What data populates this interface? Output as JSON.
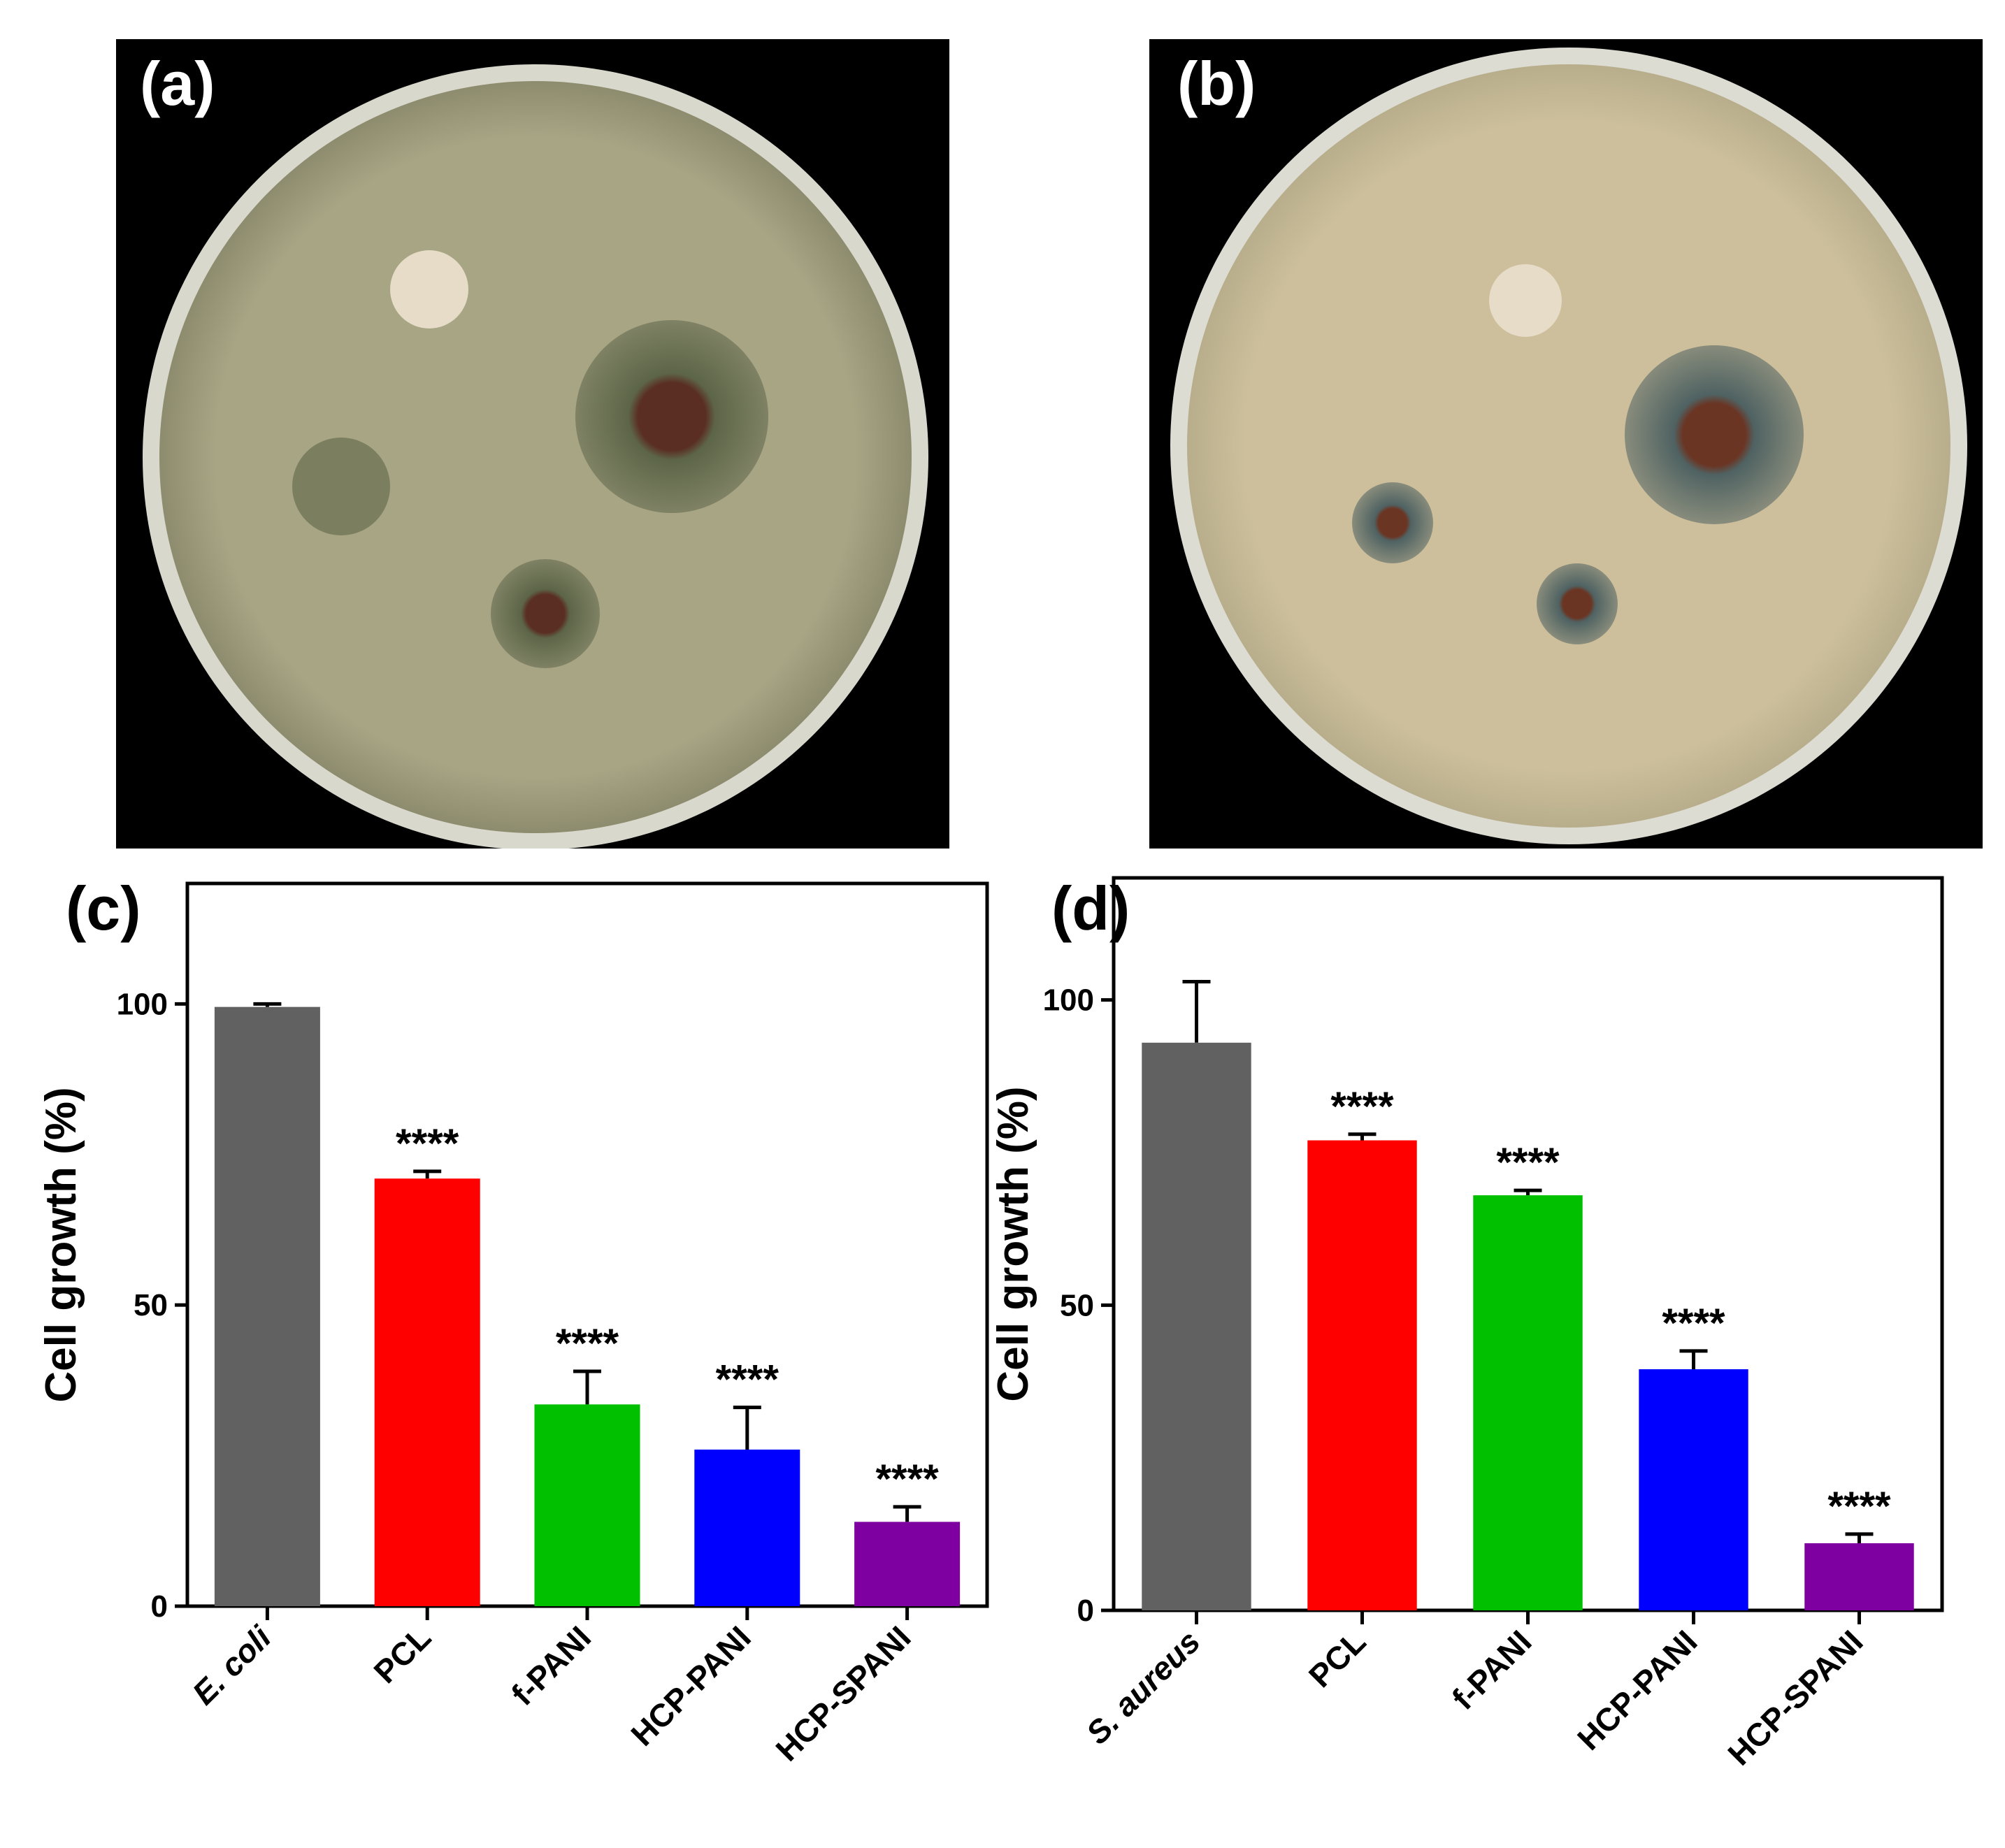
{
  "panels": {
    "a": {
      "label": "(a)"
    },
    "b": {
      "label": "(b)"
    },
    "c": {
      "label": "(c)"
    },
    "d": {
      "label": "(d)"
    }
  },
  "photo_a": {
    "colors": {
      "agar": "#a8a585",
      "agar_edge": "#8e8c6e",
      "rim": "#d8d8cc",
      "zone": "#5d6548",
      "disc": "#e6dcc8",
      "sample": "#5a2e22"
    }
  },
  "photo_b": {
    "colors": {
      "agar": "#cdbf9b",
      "agar_edge": "#b8ae8c",
      "rim": "#dcdcd2",
      "zone": "#4f6262",
      "disc": "#e6dcc8",
      "sample": "#6b3524"
    }
  },
  "chart_data": [
    {
      "type": "bar",
      "panel": "(c)",
      "categories": [
        "E. coli",
        "PCL",
        "f-PANI",
        "HCP-PANI",
        "HCP-SPANI"
      ],
      "category_italic": [
        true,
        false,
        false,
        false,
        false
      ],
      "values": [
        99.5,
        71,
        33.5,
        26,
        14
      ],
      "errors": [
        0.5,
        1.2,
        5.5,
        7,
        2.5
      ],
      "annotations": [
        "",
        "****",
        "****",
        "****",
        "****"
      ],
      "colors": [
        "#616161",
        "#ff0000",
        "#00c000",
        "#0000ff",
        "#7f00a0"
      ],
      "ylabel": "Cell growth (%)",
      "xlabel": "",
      "ylim": [
        0,
        120
      ],
      "yticks": [
        0,
        50,
        100
      ],
      "grid": false
    },
    {
      "type": "bar",
      "panel": "(d)",
      "categories": [
        "S. aureus",
        "PCL",
        "f-PANI",
        "HCP-PANI",
        "HCP-SPANI"
      ],
      "category_italic": [
        true,
        false,
        false,
        false,
        false
      ],
      "values": [
        93,
        77,
        68,
        39.5,
        11
      ],
      "errors": [
        10,
        1,
        0.8,
        3,
        1.5
      ],
      "annotations": [
        "",
        "****",
        "****",
        "****",
        "****"
      ],
      "colors": [
        "#616161",
        "#ff0000",
        "#00c000",
        "#0000ff",
        "#7f00a0"
      ],
      "ylabel": "Cell growth (%)",
      "xlabel": "",
      "ylim": [
        0,
        120
      ],
      "yticks": [
        0,
        50,
        100
      ],
      "grid": false
    }
  ]
}
